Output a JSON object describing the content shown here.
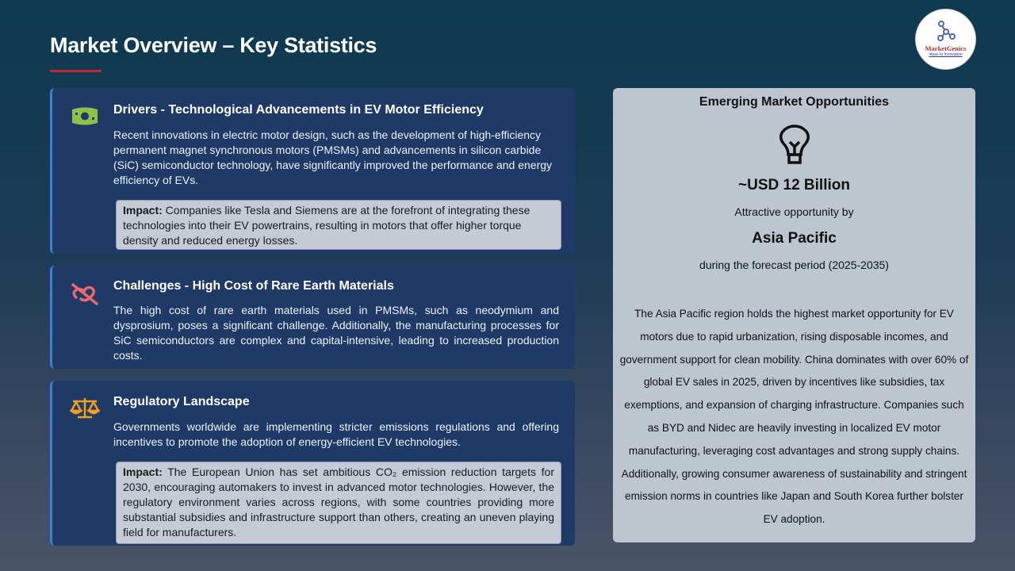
{
  "header": {
    "title": "Market Overview – Key Statistics",
    "logo_name": "MarketGenics",
    "logo_tagline": "Ideas to Innovation"
  },
  "colors": {
    "accent_red": "#c0282d",
    "card_bg": "#1f3a66",
    "card_border": "#3f7fd8",
    "drivers_icon": "#8bc34a",
    "challenges_icon": "#e86a6a",
    "regulatory_icon": "#f0a020"
  },
  "cards": [
    {
      "icon": "money-bill-icon",
      "heading": "Drivers - Technological Advancements in EV Motor Efficiency",
      "body": "Recent innovations in electric motor design, such as the development of high-efficiency permanent magnet synchronous motors (PMSMs) and advancements in silicon carbide (SiC) semiconductor technology, have significantly improved the performance and energy efficiency of EVs.",
      "impact_label": "Impact:",
      "impact_text": " Companies like Tesla and Siemens are at the forefront of integrating these technologies into their EV powertrains, resulting in motors that offer higher torque density and reduced energy losses."
    },
    {
      "icon": "broken-link-icon",
      "heading": "Challenges - High Cost of Rare Earth Materials",
      "body": "The high cost of rare earth materials used in PMSMs, such as neodymium and dysprosium, poses a significant challenge. Additionally, the manufacturing processes for SiC semiconductors are complex and capital-intensive, leading to increased production costs."
    },
    {
      "icon": "scales-icon",
      "heading": "Regulatory Landscape",
      "body": "Governments worldwide are implementing stricter emissions regulations and offering incentives to promote the adoption of energy-efficient EV technologies.",
      "impact_label": "Impact:",
      "impact_text": " The European Union has set ambitious CO₂ emission reduction targets for 2030, encouraging automakers to invest in advanced motor technologies. However, the regulatory environment varies across regions, with some countries providing more substantial subsidies and infrastructure support than others, creating an uneven playing field for manufacturers."
    }
  ],
  "opportunity": {
    "title": "Emerging Market Opportunities",
    "icon": "lightbulb-icon",
    "value": "~USD 12 Billion",
    "by_label": "Attractive opportunity by",
    "region": "Asia Pacific",
    "period": "during the forecast period (2025-2035)",
    "description": "The Asia Pacific region holds the highest market opportunity for EV motors due to rapid urbanization, rising disposable incomes, and government support for clean mobility. China dominates with over 60% of global EV sales in 2025, driven by incentives like subsidies, tax exemptions, and expansion of charging infrastructure. Companies such as BYD and Nidec are heavily investing in localized EV motor manufacturing, leveraging cost advantages and strong supply chains. Additionally, growing consumer awareness of sustainability and stringent emission norms in countries like Japan and South Korea further bolster EV adoption."
  }
}
